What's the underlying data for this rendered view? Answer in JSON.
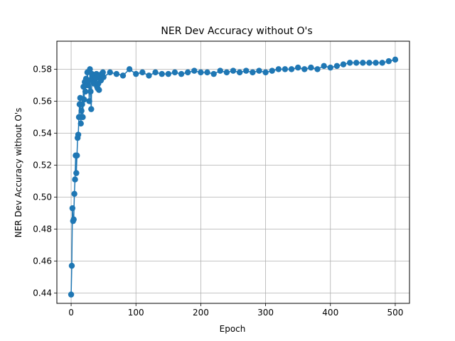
{
  "chart_data": {
    "type": "line",
    "title": "NER Dev Accuracy without O's",
    "xlabel": "Epoch",
    "ylabel": "NER Dev Accuracy without O's",
    "xlim": [
      -22,
      522
    ],
    "ylim": [
      0.4335,
      0.5975
    ],
    "xticks": [
      0,
      100,
      200,
      300,
      400,
      500
    ],
    "yticks": [
      0.44,
      0.46,
      0.48,
      0.5,
      0.52,
      0.54,
      0.56,
      0.58
    ],
    "xtick_labels": [
      "0",
      "100",
      "200",
      "300",
      "400",
      "500"
    ],
    "ytick_labels": [
      "0.44",
      "0.46",
      "0.48",
      "0.50",
      "0.52",
      "0.54",
      "0.56",
      "0.58"
    ],
    "grid": true,
    "color": "#1f77b4",
    "marker": "circle",
    "series": [
      {
        "x": [
          0,
          1,
          2,
          3,
          4,
          5,
          6,
          7,
          8,
          9,
          10,
          11,
          12,
          13,
          14,
          15,
          16,
          17,
          18,
          19,
          20,
          21,
          22,
          23,
          24,
          25,
          26,
          27,
          28,
          29,
          30,
          31,
          32,
          33,
          34,
          35,
          36,
          37,
          38,
          39,
          40,
          41,
          42,
          43,
          44,
          45,
          46,
          47,
          48,
          49,
          50,
          60,
          70,
          80,
          90,
          100,
          110,
          120,
          130,
          140,
          150,
          160,
          170,
          180,
          190,
          200,
          210,
          220,
          230,
          240,
          250,
          260,
          270,
          280,
          290,
          300,
          310,
          320,
          330,
          340,
          350,
          360,
          370,
          380,
          390,
          400,
          410,
          420,
          430,
          440,
          450,
          460,
          470,
          480,
          490,
          500
        ],
        "y": [
          0.439,
          0.457,
          0.493,
          0.485,
          0.486,
          0.502,
          0.511,
          0.526,
          0.515,
          0.526,
          0.537,
          0.539,
          0.55,
          0.558,
          0.562,
          0.546,
          0.554,
          0.558,
          0.55,
          0.569,
          0.561,
          0.572,
          0.566,
          0.574,
          0.57,
          0.578,
          0.57,
          0.573,
          0.56,
          0.58,
          0.566,
          0.555,
          0.577,
          0.573,
          0.575,
          0.571,
          0.576,
          0.574,
          0.575,
          0.577,
          0.569,
          0.568,
          0.571,
          0.567,
          0.576,
          0.574,
          0.573,
          0.577,
          0.575,
          0.578,
          0.575,
          0.578,
          0.577,
          0.576,
          0.58,
          0.577,
          0.578,
          0.576,
          0.578,
          0.577,
          0.577,
          0.578,
          0.577,
          0.578,
          0.579,
          0.578,
          0.578,
          0.577,
          0.579,
          0.578,
          0.579,
          0.578,
          0.579,
          0.578,
          0.579,
          0.578,
          0.579,
          0.58,
          0.58,
          0.58,
          0.581,
          0.58,
          0.581,
          0.58,
          0.582,
          0.581,
          0.582,
          0.583,
          0.584,
          0.584,
          0.584,
          0.584,
          0.584,
          0.584,
          0.585,
          0.586
        ]
      }
    ]
  }
}
